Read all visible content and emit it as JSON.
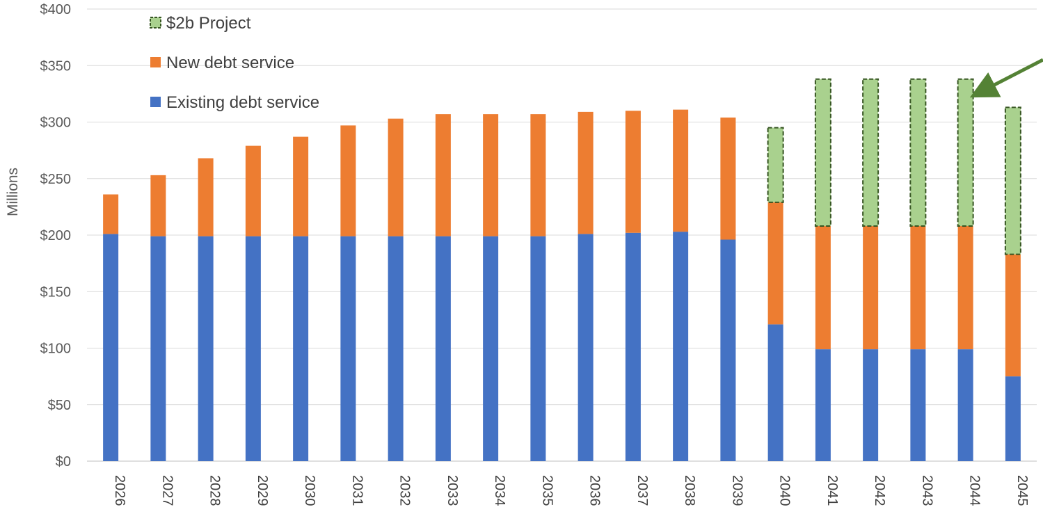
{
  "chart_data": {
    "type": "bar",
    "stacked": true,
    "title": "",
    "xlabel": "",
    "ylabel": "Millions",
    "ylim": [
      0,
      400
    ],
    "yticks": [
      "$0",
      "$50",
      "$100",
      "$150",
      "$200",
      "$250",
      "$300",
      "$350",
      "$400"
    ],
    "ytick_values": [
      0,
      50,
      100,
      150,
      200,
      250,
      300,
      350,
      400
    ],
    "grid": true,
    "legend_position": "top-left",
    "categories": [
      "2026",
      "2027",
      "2028",
      "2029",
      "2030",
      "2031",
      "2032",
      "2033",
      "2034",
      "2035",
      "2036",
      "2037",
      "2038",
      "2039",
      "2040",
      "2041",
      "2042",
      "2043",
      "2044",
      "2045"
    ],
    "series": [
      {
        "name": "Existing debt service",
        "color": "#4472C4",
        "values": [
          201,
          199,
          199,
          199,
          199,
          199,
          199,
          199,
          199,
          199,
          201,
          202,
          203,
          196,
          121,
          99,
          99,
          99,
          99,
          75
        ]
      },
      {
        "name": "New debt service",
        "color": "#ED7D31",
        "values": [
          35,
          54,
          69,
          80,
          88,
          98,
          104,
          108,
          108,
          108,
          108,
          108,
          108,
          108,
          108,
          109,
          109,
          109,
          109,
          108
        ]
      },
      {
        "name": "$2b Project",
        "color": "#A9D18E",
        "border_color": "#375623",
        "border_style": "dashed",
        "values": [
          0,
          0,
          0,
          0,
          0,
          0,
          0,
          0,
          0,
          0,
          0,
          0,
          0,
          0,
          66,
          130,
          130,
          130,
          130,
          130
        ]
      }
    ],
    "legend_order": [
      "$2b Project",
      "New debt service",
      "Existing debt service"
    ],
    "annotations": [
      {
        "type": "arrow",
        "color": "#548235",
        "points_to": "2044"
      }
    ]
  }
}
